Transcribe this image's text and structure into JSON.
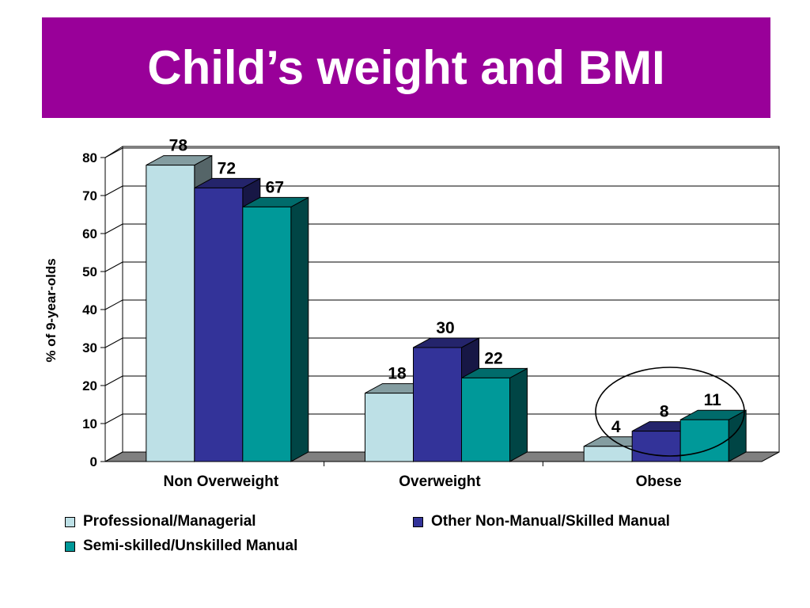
{
  "slide": {
    "title": "Child’s weight and BMI",
    "banner_color": "#990099"
  },
  "chart_data": {
    "type": "bar",
    "style": "3d-clustered",
    "categories": [
      "Non Overweight",
      "Overweight",
      "Obese"
    ],
    "series": [
      {
        "name": "Professional/Managerial",
        "values": [
          78,
          18,
          4
        ],
        "color": "#bde0e6"
      },
      {
        "name": "Other Non-Manual/Skilled Manual",
        "values": [
          72,
          30,
          8
        ],
        "color": "#333399"
      },
      {
        "name": "Semi-skilled/Unskilled Manual",
        "values": [
          67,
          22,
          11
        ],
        "color": "#009999"
      }
    ],
    "ylabel": "% of 9-year-olds",
    "xlabel": "",
    "ylim": [
      0,
      80
    ],
    "yticks": [
      0,
      10,
      20,
      30,
      40,
      50,
      60,
      70,
      80
    ],
    "grid": true,
    "legend_position": "bottom",
    "annotation": "circle around Obese group"
  }
}
